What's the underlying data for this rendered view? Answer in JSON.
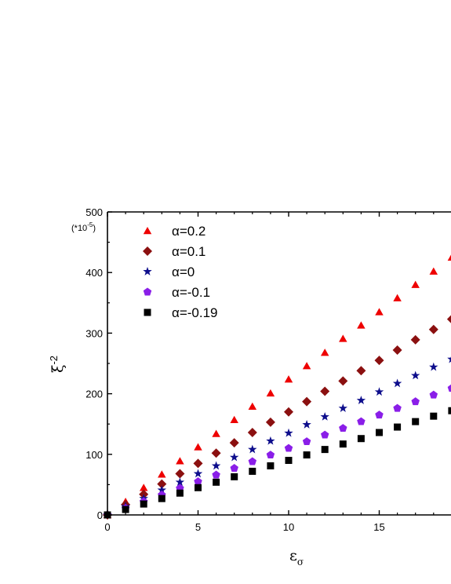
{
  "chart_data": {
    "type": "scatter",
    "title": "",
    "xlabel": "εσ",
    "ylabel": "ξ-2",
    "x_symbol": "ε",
    "x_subscript": "σ",
    "y_symbol": "ξ",
    "y_superscript": "-2",
    "y_multiplier": "(*10",
    "y_multiplier_exp": "-5",
    "y_multiplier_close": ")",
    "xlim": [
      0,
      19
    ],
    "ylim": [
      0,
      500
    ],
    "xticks": [
      0,
      5,
      10,
      15
    ],
    "yticks": [
      0,
      100,
      200,
      300,
      400,
      500
    ],
    "grid": false,
    "legend_position": "top-left",
    "x": [
      0,
      1,
      2,
      3,
      4,
      5,
      6,
      7,
      8,
      9,
      10,
      11,
      12,
      13,
      14,
      15,
      16,
      17,
      18,
      19
    ],
    "series": [
      {
        "name": "α=0.2",
        "marker": "triangle",
        "color": "#ee0000",
        "values": [
          0,
          22,
          45,
          67,
          89,
          112,
          134,
          157,
          179,
          201,
          224,
          246,
          268,
          291,
          313,
          335,
          358,
          380,
          402,
          425
        ]
      },
      {
        "name": "α=0.1",
        "marker": "diamond",
        "color": "#8b1010",
        "values": [
          0,
          17,
          34,
          51,
          68,
          85,
          102,
          119,
          136,
          153,
          170,
          187,
          204,
          221,
          238,
          255,
          272,
          289,
          306,
          323
        ]
      },
      {
        "name": "α=0",
        "marker": "star",
        "color": "#0d0d8c",
        "values": [
          0,
          14,
          27,
          41,
          54,
          68,
          81,
          95,
          108,
          122,
          135,
          149,
          162,
          176,
          189,
          203,
          217,
          230,
          244,
          257
        ]
      },
      {
        "name": "α=-0.1",
        "marker": "pentagon",
        "color": "#8a1ee8",
        "values": [
          0,
          11,
          22,
          33,
          44,
          55,
          66,
          77,
          88,
          99,
          110,
          121,
          132,
          143,
          154,
          165,
          176,
          187,
          198,
          209
        ]
      },
      {
        "name": "α=-0.19",
        "marker": "square",
        "color": "#000000",
        "values": [
          0,
          9,
          18,
          27,
          36,
          45,
          54,
          63,
          72,
          81,
          90,
          99,
          108,
          117,
          126,
          136,
          145,
          154,
          163,
          172
        ]
      }
    ]
  }
}
